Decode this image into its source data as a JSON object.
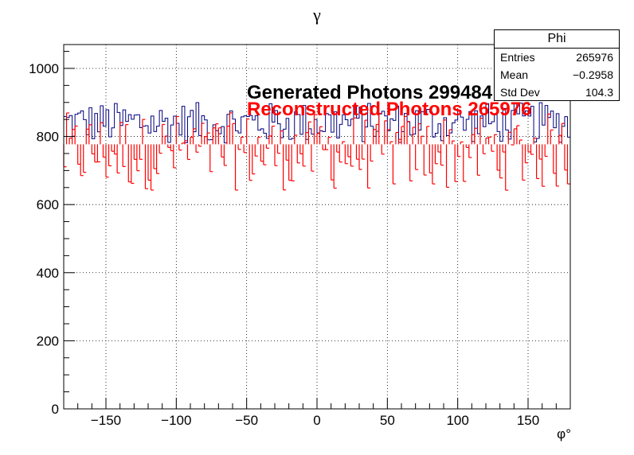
{
  "chart_data": {
    "type": "histogram",
    "title": "γ",
    "xlabel": "φ°",
    "ylabel": "",
    "xlim": [
      -180,
      180
    ],
    "ylim": [
      0,
      1070
    ],
    "x_ticks": [
      -150,
      -100,
      -50,
      0,
      50,
      100,
      150
    ],
    "y_ticks": [
      0,
      200,
      400,
      600,
      800,
      1000
    ],
    "grid": true,
    "bins": 180,
    "series": [
      {
        "name": "Generated Photons 299484",
        "color": "#00007f",
        "style": "step",
        "mean_value": 832,
        "range": [
          780,
          900
        ]
      },
      {
        "name": "Reconstructed Photons 265976",
        "color": "#ff0000",
        "style": "hist-bars",
        "mean_value": 737,
        "range": [
          565,
          870
        ]
      }
    ],
    "stats_box": {
      "title": "Phi",
      "rows": [
        {
          "label": "Entries",
          "value": "265976"
        },
        {
          "label": "Mean",
          "value": "−0.2958"
        },
        {
          "label": "Std Dev",
          "value": "104.3"
        }
      ]
    }
  }
}
